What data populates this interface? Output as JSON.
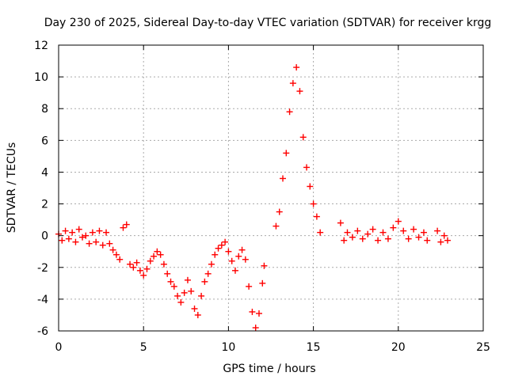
{
  "chart_data": {
    "type": "scatter",
    "title": "Day 230 of 2025, Sidereal Day-to-day VTEC variation (SDTVAR) for receiver krgg",
    "xlabel": "GPS time / hours",
    "ylabel": "SDTVAR / TECUs",
    "xlim": [
      0,
      25
    ],
    "ylim": [
      -6,
      12
    ],
    "xticks": [
      0,
      5,
      10,
      15,
      20,
      25
    ],
    "yticks": [
      -6,
      -4,
      -2,
      0,
      2,
      4,
      6,
      8,
      10,
      12
    ],
    "grid": true,
    "marker": "+",
    "series": [
      {
        "name": "SDTVAR",
        "color": "#ff0000",
        "points": [
          [
            0.0,
            0.1
          ],
          [
            0.2,
            -0.3
          ],
          [
            0.4,
            0.3
          ],
          [
            0.6,
            -0.2
          ],
          [
            0.8,
            0.2
          ],
          [
            1.0,
            -0.4
          ],
          [
            1.2,
            0.4
          ],
          [
            1.4,
            -0.1
          ],
          [
            1.6,
            0.0
          ],
          [
            1.8,
            -0.5
          ],
          [
            2.0,
            0.2
          ],
          [
            2.2,
            -0.4
          ],
          [
            2.4,
            0.3
          ],
          [
            2.6,
            -0.6
          ],
          [
            2.8,
            0.2
          ],
          [
            3.0,
            -0.5
          ],
          [
            3.2,
            -0.9
          ],
          [
            3.4,
            -1.2
          ],
          [
            3.6,
            -1.5
          ],
          [
            3.8,
            0.5
          ],
          [
            4.0,
            0.7
          ],
          [
            4.2,
            -1.8
          ],
          [
            4.4,
            -2.0
          ],
          [
            4.6,
            -1.7
          ],
          [
            4.8,
            -2.2
          ],
          [
            5.0,
            -2.5
          ],
          [
            5.2,
            -2.1
          ],
          [
            5.4,
            -1.6
          ],
          [
            5.6,
            -1.3
          ],
          [
            5.8,
            -1.0
          ],
          [
            6.0,
            -1.2
          ],
          [
            6.2,
            -1.8
          ],
          [
            6.4,
            -2.4
          ],
          [
            6.6,
            -2.9
          ],
          [
            6.8,
            -3.2
          ],
          [
            7.0,
            -3.8
          ],
          [
            7.2,
            -4.2
          ],
          [
            7.4,
            -3.6
          ],
          [
            7.6,
            -2.8
          ],
          [
            7.8,
            -3.5
          ],
          [
            8.0,
            -4.6
          ],
          [
            8.2,
            -5.0
          ],
          [
            8.4,
            -3.8
          ],
          [
            8.6,
            -2.9
          ],
          [
            8.8,
            -2.4
          ],
          [
            9.0,
            -1.8
          ],
          [
            9.2,
            -1.2
          ],
          [
            9.4,
            -0.8
          ],
          [
            9.6,
            -0.6
          ],
          [
            9.8,
            -0.4
          ],
          [
            10.0,
            -1.0
          ],
          [
            10.2,
            -1.6
          ],
          [
            10.4,
            -2.2
          ],
          [
            10.6,
            -1.3
          ],
          [
            10.8,
            -0.9
          ],
          [
            11.0,
            -1.5
          ],
          [
            11.2,
            -3.2
          ],
          [
            11.4,
            -4.8
          ],
          [
            11.6,
            -5.8
          ],
          [
            11.8,
            -4.9
          ],
          [
            12.0,
            -3.0
          ],
          [
            12.1,
            -1.9
          ],
          [
            12.8,
            0.6
          ],
          [
            13.0,
            1.5
          ],
          [
            13.2,
            3.6
          ],
          [
            13.4,
            5.2
          ],
          [
            13.6,
            7.8
          ],
          [
            13.8,
            9.6
          ],
          [
            14.0,
            10.6
          ],
          [
            14.2,
            9.1
          ],
          [
            14.4,
            6.2
          ],
          [
            14.6,
            4.3
          ],
          [
            14.8,
            3.1
          ],
          [
            15.0,
            2.0
          ],
          [
            15.2,
            1.2
          ],
          [
            15.4,
            0.2
          ],
          [
            16.6,
            0.8
          ],
          [
            16.8,
            -0.3
          ],
          [
            17.0,
            0.2
          ],
          [
            17.3,
            -0.1
          ],
          [
            17.6,
            0.3
          ],
          [
            17.9,
            -0.2
          ],
          [
            18.2,
            0.1
          ],
          [
            18.5,
            0.4
          ],
          [
            18.8,
            -0.3
          ],
          [
            19.1,
            0.2
          ],
          [
            19.4,
            -0.2
          ],
          [
            19.7,
            0.5
          ],
          [
            20.0,
            0.9
          ],
          [
            20.3,
            0.3
          ],
          [
            20.6,
            -0.2
          ],
          [
            20.9,
            0.4
          ],
          [
            21.2,
            -0.1
          ],
          [
            21.5,
            0.2
          ],
          [
            21.7,
            -0.3
          ],
          [
            22.3,
            0.3
          ],
          [
            22.5,
            -0.4
          ],
          [
            22.7,
            0.0
          ],
          [
            22.9,
            -0.3
          ]
        ]
      }
    ]
  }
}
